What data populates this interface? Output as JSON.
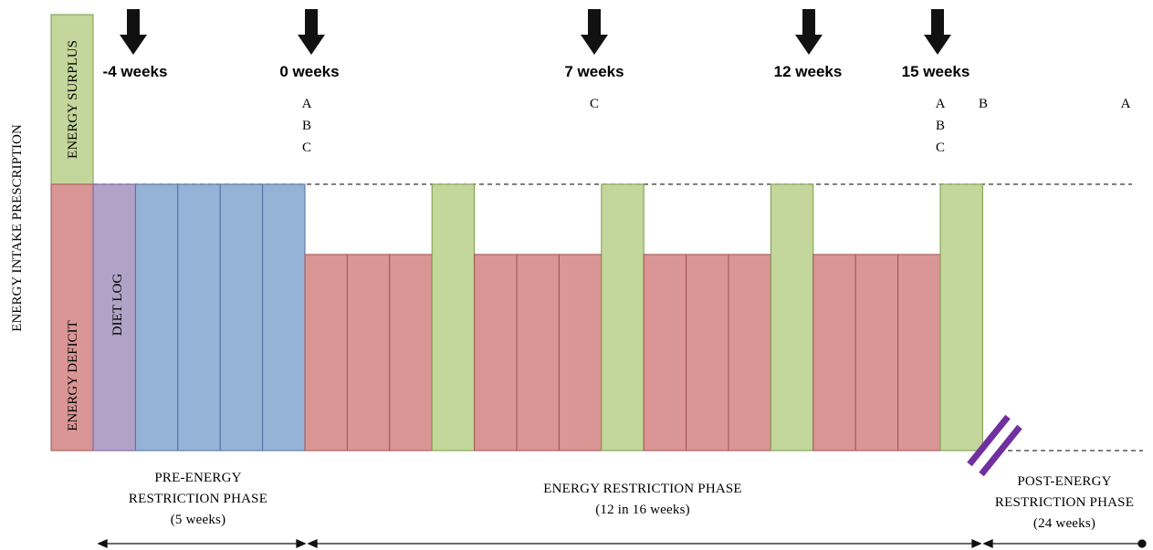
{
  "y_axis_label": "ENERGY INTAKE PRESCRIPTION",
  "legend": {
    "surplus": "ENERGY SURPLUS",
    "deficit": "ENERGY DEFICIT",
    "diet_log": "DIET LOG"
  },
  "colors": {
    "surplus": "#c3d69b",
    "deficit": "#d99694",
    "diet_log": "#b3a2c7",
    "baseline": "#95b3d7",
    "diet_break": "#c3d69b",
    "slash": "#7030a0"
  },
  "time_markers": [
    {
      "label": "-4 weeks",
      "arrow": true,
      "tests": []
    },
    {
      "label": "0 weeks",
      "arrow": true,
      "tests": [
        "A",
        "B",
        "C"
      ]
    },
    {
      "label": "7 weeks",
      "arrow": true,
      "tests": [
        "C"
      ]
    },
    {
      "label": "12 weeks",
      "arrow": true,
      "tests": []
    },
    {
      "label": "15 weeks",
      "arrow": true,
      "tests": [
        "A",
        "B",
        "C"
      ]
    },
    {
      "label": "",
      "arrow": false,
      "tests": [
        "B"
      ]
    },
    {
      "label": "",
      "arrow": false,
      "tests": [
        "A"
      ]
    }
  ],
  "weeks": [
    "diet_log",
    "baseline",
    "baseline",
    "baseline",
    "baseline",
    "deficit",
    "deficit",
    "deficit",
    "diet_break",
    "deficit",
    "deficit",
    "deficit",
    "diet_break",
    "deficit",
    "deficit",
    "deficit",
    "diet_break",
    "deficit",
    "deficit",
    "deficit",
    "diet_break"
  ],
  "phases": [
    {
      "lines": [
        "PRE-ENERGY",
        "RESTRICTION PHASE",
        "(5 weeks)"
      ]
    },
    {
      "lines": [
        "ENERGY RESTRICTION PHASE",
        "(12 in 16 weeks)"
      ]
    },
    {
      "lines": [
        "POST-ENERGY",
        "RESTRICTION PHASE",
        "(24 weeks)"
      ]
    }
  ]
}
